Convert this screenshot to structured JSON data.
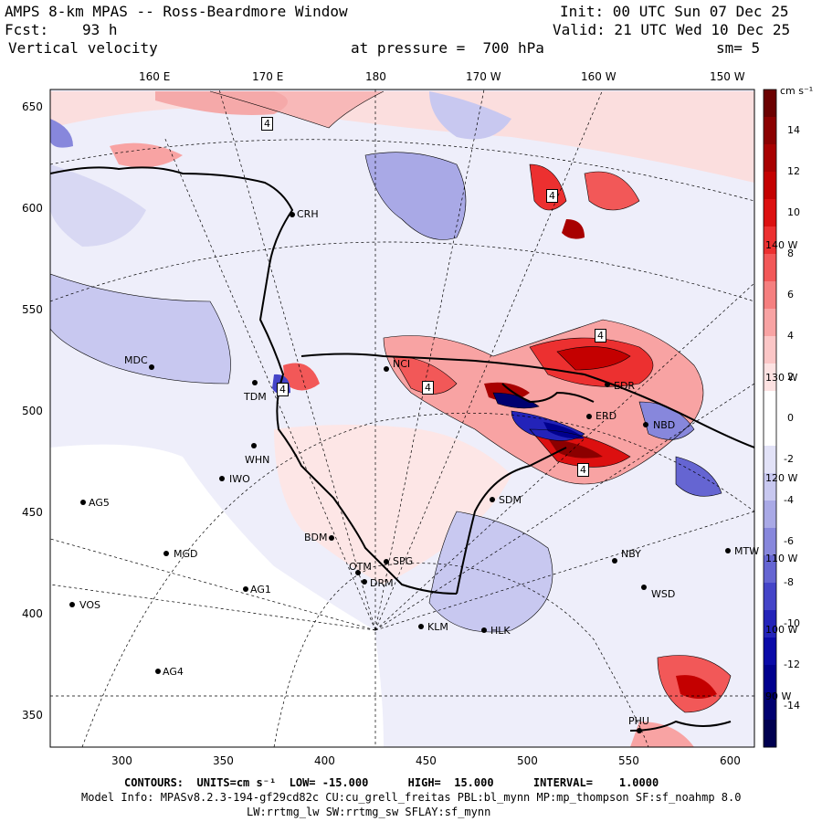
{
  "header": {
    "title": "AMPS 8-km MPAS -- Ross-Beardmore Window",
    "init": "Init: 00 UTC Sun 07 Dec 25",
    "fcst_label": "Fcst:",
    "fcst_value": "93 h",
    "valid": "Valid: 21 UTC Wed 10 Dec 25",
    "field": "Vertical velocity",
    "pressure": "at pressure =  700 hPa",
    "smooth": "sm= 5"
  },
  "top_lon_labels": [
    "160 E",
    "170 E",
    "180",
    "170 W",
    "160 W",
    "150 W"
  ],
  "right_lon_labels": [
    "140 W",
    "130 W",
    "120 W",
    "110 W",
    "100 W",
    "90 W"
  ],
  "y_ticks": [
    "650",
    "600",
    "550",
    "500",
    "450",
    "400",
    "350"
  ],
  "x_ticks": [
    "300",
    "350",
    "400",
    "450",
    "500",
    "550",
    "600"
  ],
  "colorbar": {
    "units": "cm s⁻¹",
    "labels": [
      "14",
      "12",
      "10",
      "8",
      "6",
      "4",
      "2",
      "0",
      "-2",
      "-4",
      "-6",
      "-8",
      "-10",
      "-12",
      "-14"
    ],
    "colors": [
      "#6b0000",
      "#8b0000",
      "#a80000",
      "#c40000",
      "#dc1010",
      "#ec3030",
      "#f25858",
      "#f57f7f",
      "#f8a3a3",
      "#fbc6c6",
      "#fde2e2",
      "#ffffff",
      "#ffffff",
      "#e2e2f7",
      "#c8c8f0",
      "#a9a9e6",
      "#8787dc",
      "#6565d2",
      "#4444c8",
      "#2323b9",
      "#0a0aa8",
      "#00008e",
      "#000070",
      "#000050"
    ]
  },
  "stations": [
    {
      "id": "CRH"
    },
    {
      "id": "MDC"
    },
    {
      "id": "TDM"
    },
    {
      "id": "WHN"
    },
    {
      "id": "IWO"
    },
    {
      "id": "AG5"
    },
    {
      "id": "MGD"
    },
    {
      "id": "AG1"
    },
    {
      "id": "VOS"
    },
    {
      "id": "AG4"
    },
    {
      "id": "BDM"
    },
    {
      "id": "OTM"
    },
    {
      "id": "SPG"
    },
    {
      "id": "DRM"
    },
    {
      "id": "KLM"
    },
    {
      "id": "HLK"
    },
    {
      "id": "NCI"
    },
    {
      "id": "SDM"
    },
    {
      "id": "NBY"
    },
    {
      "id": "WSD"
    },
    {
      "id": "ERD"
    },
    {
      "id": "NBD"
    },
    {
      "id": "MTW"
    },
    {
      "id": "EDR"
    },
    {
      "id": "PHU"
    }
  ],
  "contour_labels": [
    "4",
    "4",
    "4",
    "4",
    "4",
    "4"
  ],
  "footer": {
    "contours": "CONTOURS:  UNITS=cm s⁻¹  LOW= -15.000      HIGH=  15.000      INTERVAL=    1.0000",
    "model_info": "Model Info: MPASv8.2.3-194-gf29cd82c CU:cu_grell_freitas PBL:bl_mynn MP:mp_thompson SF:sf_noahmp 8.0",
    "model_info2": "LW:rrtmg_lw SW:rrtmg_sw SFLAY:sf_mynn"
  }
}
